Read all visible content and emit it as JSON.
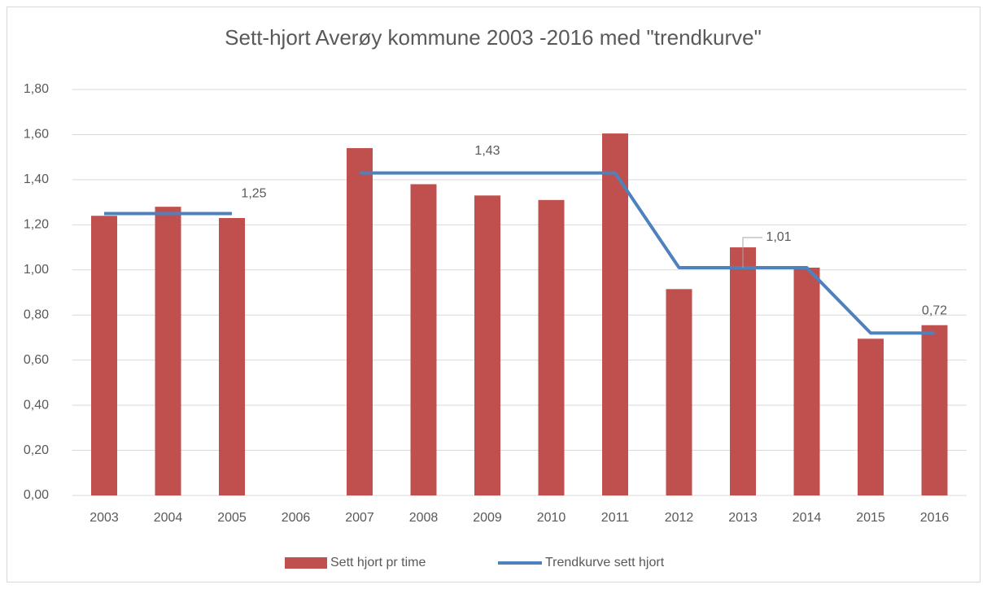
{
  "chart_data": {
    "type": "bar",
    "title": "Sett-hjort Averøy kommune 2003 -2016 med \"trendkurve\"",
    "categories": [
      "2003",
      "2004",
      "2005",
      "2006",
      "2007",
      "2008",
      "2009",
      "2010",
      "2011",
      "2012",
      "2013",
      "2014",
      "2015",
      "2016"
    ],
    "series": [
      {
        "name": "Sett hjort pr time",
        "type": "bar",
        "color": "#c0504d",
        "values": [
          1.24,
          1.28,
          1.23,
          null,
          1.54,
          1.38,
          1.33,
          1.31,
          1.605,
          0.915,
          1.1,
          1.01,
          0.695,
          0.755
        ]
      },
      {
        "name": "Trendkurve sett hjort",
        "type": "line",
        "color": "#4f81bd",
        "values": [
          1.25,
          1.25,
          1.25,
          null,
          1.43,
          1.43,
          1.43,
          1.43,
          1.43,
          1.01,
          1.01,
          1.01,
          0.72,
          0.72
        ],
        "value_labels": [
          null,
          null,
          "1,25",
          null,
          null,
          null,
          "1,43",
          null,
          null,
          null,
          "1,01",
          null,
          null,
          "0,72"
        ]
      }
    ],
    "ylim": [
      0,
      1.8
    ],
    "yticks": [
      {
        "value": 0,
        "label": "0,00"
      },
      {
        "value": 0.2,
        "label": "0,20"
      },
      {
        "value": 0.4,
        "label": "0,40"
      },
      {
        "value": 0.6,
        "label": "0,60"
      },
      {
        "value": 0.8,
        "label": "0,80"
      },
      {
        "value": 1.0,
        "label": "1,00"
      },
      {
        "value": 1.2,
        "label": "1,20"
      },
      {
        "value": 1.4,
        "label": "1,40"
      },
      {
        "value": 1.6,
        "label": "1,60"
      },
      {
        "value": 1.8,
        "label": "1,80"
      }
    ],
    "grid": true,
    "legend": "bottom"
  }
}
